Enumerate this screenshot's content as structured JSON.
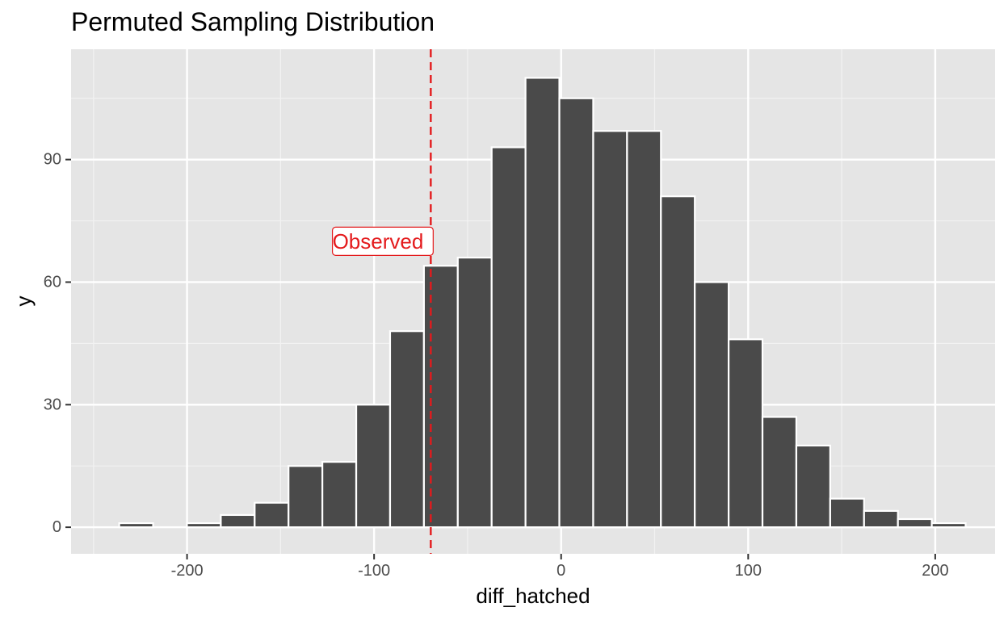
{
  "chart_data": {
    "type": "bar",
    "title": "Permuted Sampling Distribution",
    "xlabel": "diff_hatched",
    "ylabel": "y",
    "xlim": [
      -262,
      232
    ],
    "ylim": [
      -6.5,
      117
    ],
    "x_ticks": [
      -200,
      -100,
      0,
      100,
      200
    ],
    "x_tick_labels": [
      "-200",
      "-100",
      "0",
      "100",
      "200"
    ],
    "x_minor_ticks": [
      -250,
      -150,
      -50,
      50,
      150
    ],
    "y_ticks": [
      0,
      30,
      60,
      90
    ],
    "y_tick_labels": [
      "0",
      "30",
      "60",
      "90"
    ],
    "y_minor_ticks": [
      15,
      45,
      75,
      105
    ],
    "bin_width": 18.1,
    "bins": [
      {
        "x": -227.2,
        "count": 1
      },
      {
        "x": -209.1,
        "count": 0
      },
      {
        "x": -191.0,
        "count": 1
      },
      {
        "x": -172.9,
        "count": 3
      },
      {
        "x": -154.8,
        "count": 6
      },
      {
        "x": -136.7,
        "count": 15
      },
      {
        "x": -118.6,
        "count": 16
      },
      {
        "x": -100.5,
        "count": 30
      },
      {
        "x": -82.4,
        "count": 48
      },
      {
        "x": -64.3,
        "count": 64
      },
      {
        "x": -46.2,
        "count": 66
      },
      {
        "x": -28.1,
        "count": 93
      },
      {
        "x": -10.0,
        "count": 110
      },
      {
        "x": 8.1,
        "count": 105
      },
      {
        "x": 26.2,
        "count": 97
      },
      {
        "x": 44.3,
        "count": 97
      },
      {
        "x": 62.4,
        "count": 81
      },
      {
        "x": 80.5,
        "count": 60
      },
      {
        "x": 98.6,
        "count": 46
      },
      {
        "x": 116.7,
        "count": 27
      },
      {
        "x": 134.8,
        "count": 20
      },
      {
        "x": 152.9,
        "count": 7
      },
      {
        "x": 171.0,
        "count": 4
      },
      {
        "x": 189.1,
        "count": 2
      },
      {
        "x": 207.2,
        "count": 1
      }
    ],
    "observed": {
      "value": -69.7,
      "label": "Observed",
      "label_y": 70,
      "color": "#e41a1c"
    },
    "bar_fill": "#4a4a4a",
    "bar_outline": "#ffffff",
    "panel_background": "#e5e5e5",
    "grid": true,
    "legend": "none"
  }
}
